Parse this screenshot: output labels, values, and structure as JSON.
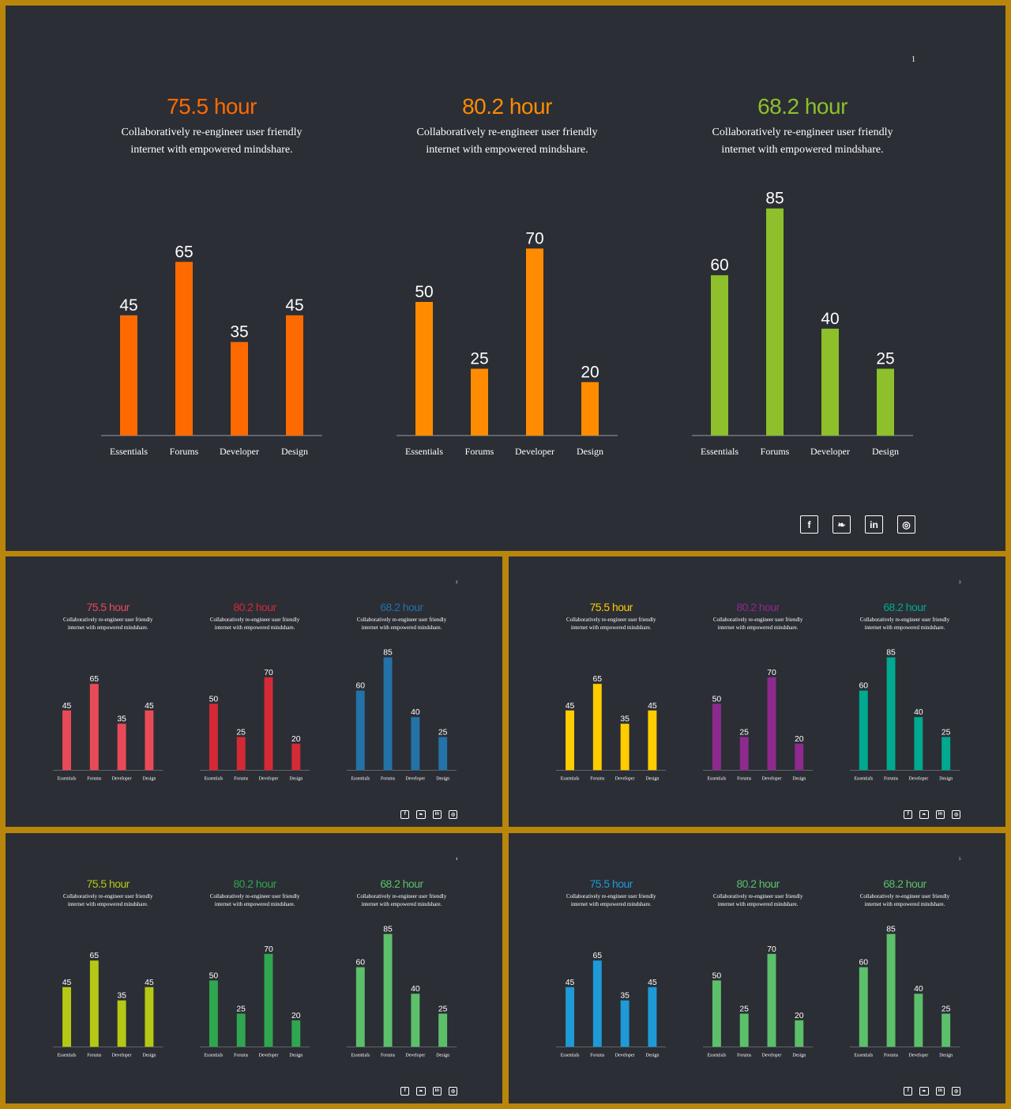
{
  "slides": [
    {
      "number": "1",
      "charts": [
        {
          "title": "75.5 hour",
          "color": "#ff6a00",
          "description_lines": [
            "Collaboratively re-engineer user friendly",
            "internet with empowered mindshare."
          ]
        },
        {
          "title": "80.2 hour",
          "color": "#ff8c00",
          "description_lines": [
            "Collaboratively re-engineer user friendly",
            "internet with empowered mindshare."
          ]
        },
        {
          "title": "68.2 hour",
          "color": "#8dc02a",
          "description_lines": [
            "Collaboratively re-engineer user friendly",
            "internet with empowered mindshare."
          ]
        }
      ],
      "social_icons": [
        "facebook-icon",
        "twitter-icon",
        "linkedin-icon",
        "instagram-icon"
      ]
    },
    {
      "number": "2",
      "charts": [
        {
          "title": "75.5 hour",
          "color": "#e84b57",
          "description_lines": [
            "Collaboratively re-engineer user friendly",
            "internet with empowered mindshare."
          ]
        },
        {
          "title": "80.2 hour",
          "color": "#d42a35",
          "description_lines": [
            "Collaboratively re-engineer user friendly",
            "internet with empowered mindshare."
          ]
        },
        {
          "title": "68.2 hour",
          "color": "#2372a8",
          "description_lines": [
            "Collaboratively re-engineer user friendly",
            "internet with empowered mindshare."
          ]
        }
      ],
      "social_icons": [
        "facebook-icon",
        "twitter-icon",
        "linkedin-icon",
        "instagram-icon"
      ]
    },
    {
      "number": "3",
      "charts": [
        {
          "title": "75.5 hour",
          "color": "#ffcc00",
          "description_lines": [
            "Collaboratively re-engineer user friendly",
            "internet with empowered mindshare."
          ]
        },
        {
          "title": "80.2 hour",
          "color": "#8e2a8e",
          "description_lines": [
            "Collaboratively re-engineer user friendly",
            "internet with empowered mindshare."
          ]
        },
        {
          "title": "68.2 hour",
          "color": "#00a98f",
          "description_lines": [
            "Collaboratively re-engineer user friendly",
            "internet with empowered mindshare."
          ]
        }
      ],
      "social_icons": [
        "facebook-icon",
        "twitter-icon",
        "linkedin-icon",
        "instagram-icon"
      ]
    },
    {
      "number": "4",
      "charts": [
        {
          "title": "75.5 hour",
          "color": "#b5c914",
          "description_lines": [
            "Collaboratively re-engineer user friendly",
            "internet with empowered mindshare."
          ]
        },
        {
          "title": "80.2 hour",
          "color": "#2fa64f",
          "description_lines": [
            "Collaboratively re-engineer user friendly",
            "internet with empowered mindshare."
          ]
        },
        {
          "title": "68.2 hour",
          "color": "#5cc06a",
          "description_lines": [
            "Collaboratively re-engineer user friendly",
            "internet with empowered mindshare."
          ]
        }
      ],
      "social_icons": [
        "facebook-icon",
        "twitter-icon",
        "linkedin-icon",
        "instagram-icon"
      ]
    },
    {
      "number": "5",
      "charts": [
        {
          "title": "75.5 hour",
          "color": "#1e9ad6",
          "description_lines": [
            "Collaboratively re-engineer user friendly",
            "internet with empowered mindshare."
          ]
        },
        {
          "title": "80.2 hour",
          "color": "#5cc06a",
          "description_lines": [
            "Collaboratively re-engineer user friendly",
            "internet with empowered mindshare."
          ]
        },
        {
          "title": "68.2 hour",
          "color": "#5cc06a",
          "description_lines": [
            "Collaboratively re-engineer user friendly",
            "internet with empowered mindshare."
          ]
        }
      ],
      "social_icons": [
        "facebook-icon",
        "twitter-icon",
        "linkedin-icon",
        "instagram-icon"
      ]
    }
  ],
  "chart_data": [
    {
      "type": "bar",
      "categories": [
        "Essentials",
        "Forums",
        "Developer",
        "Design"
      ],
      "values": [
        45,
        65,
        35,
        45
      ],
      "title": "75.5 hour",
      "ylim": [
        0,
        100
      ]
    },
    {
      "type": "bar",
      "categories": [
        "Essentials",
        "Forums",
        "Developer",
        "Design"
      ],
      "values": [
        50,
        25,
        70,
        20
      ],
      "title": "80.2 hour",
      "ylim": [
        0,
        100
      ]
    },
    {
      "type": "bar",
      "categories": [
        "Essentials",
        "Forums",
        "Developer",
        "Design"
      ],
      "values": [
        60,
        85,
        40,
        25
      ],
      "title": "68.2 hour",
      "ylim": [
        0,
        100
      ]
    }
  ]
}
